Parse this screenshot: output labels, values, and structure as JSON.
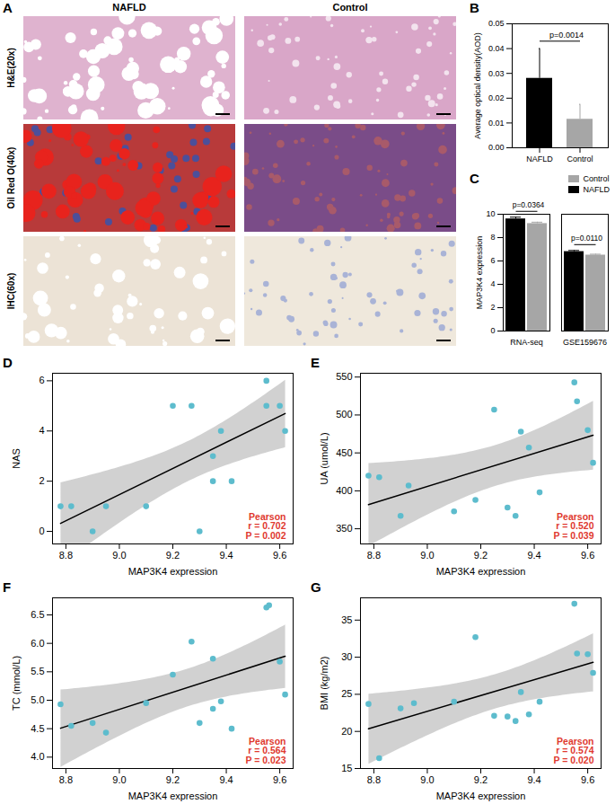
{
  "panel_a": {
    "panel": "A",
    "columns": [
      "NAFLD",
      "Control"
    ],
    "rows": [
      "H&E(20x)",
      "Oil Red O(40x)",
      "IHC(60x)"
    ]
  },
  "chart_data": [
    {
      "panel": "B",
      "type": "bar",
      "categories": [
        "NAFLD",
        "Control"
      ],
      "values": [
        0.028,
        0.0115
      ],
      "errors": [
        0.012,
        0.006
      ],
      "colors": [
        "#000000",
        "#a6a6a6"
      ],
      "y_label": "Average optical density(AOD)",
      "ylim": [
        0,
        0.05
      ],
      "yticks": [
        {
          "value": 0,
          "label": "0.00"
        },
        0.01,
        0.02,
        0.03,
        0.04,
        0.05
      ],
      "annotations": [
        "p=0.0014"
      ]
    },
    {
      "panel": "C",
      "type": "grouped_bar",
      "categories": [
        "RNA-seq",
        "GSE159676"
      ],
      "series": [
        {
          "name": "NAFLD",
          "color": "#000000",
          "values": [
            9.6,
            6.8
          ],
          "errors": [
            0.15,
            0.1
          ]
        },
        {
          "name": "Control",
          "color": "#a6a6a6",
          "values": [
            9.2,
            6.5
          ],
          "errors": [
            0.12,
            0.08
          ]
        }
      ],
      "y_label": "MAP3K4 expression",
      "ylim": [
        0,
        10
      ],
      "yticks": [
        0,
        2,
        4,
        6,
        8,
        10
      ],
      "annotations": [
        "p=0.0364",
        "p=0.0110"
      ],
      "legend": "top-right"
    },
    {
      "panel": "D",
      "type": "scatter",
      "x_label": "MAP3K4 expression",
      "y_label": "NAS",
      "color": "#5dbccd",
      "x": [
        8.78,
        8.82,
        8.9,
        8.95,
        9.1,
        9.2,
        9.27,
        9.3,
        9.35,
        9.35,
        9.38,
        9.42,
        9.55,
        9.55,
        9.6,
        9.62
      ],
      "values": [
        1,
        1,
        0,
        1,
        1,
        5,
        5,
        0,
        3,
        2,
        4,
        2,
        6,
        5,
        5,
        4
      ],
      "xlim": [
        8.75,
        9.65
      ],
      "xticks": [
        8.8,
        {
          "value": 9,
          "label": "9.0"
        },
        9.2,
        9.4,
        9.6
      ],
      "ylim": [
        -0.5,
        6.3
      ],
      "yticks": [
        0,
        2,
        4,
        6
      ],
      "annotations": [
        "Pearson",
        "r = 0.702",
        "P = 0.002"
      ]
    },
    {
      "panel": "E",
      "type": "scatter",
      "x_label": "MAP3K4 expression",
      "y_label": "UA (umol/L)",
      "color": "#5dbccd",
      "x": [
        8.78,
        8.82,
        8.9,
        8.93,
        9.1,
        9.18,
        9.25,
        9.3,
        9.33,
        9.35,
        9.38,
        9.42,
        9.55,
        9.56,
        9.6,
        9.62
      ],
      "values": [
        420,
        418,
        367,
        407,
        373,
        388,
        507,
        378,
        367,
        478,
        457,
        398,
        543,
        518,
        480,
        437
      ],
      "xlim": [
        8.75,
        9.65
      ],
      "xticks": [
        8.8,
        {
          "value": 9,
          "label": "9.0"
        },
        9.2,
        9.4,
        9.6
      ],
      "ylim": [
        330,
        555
      ],
      "yticks": [
        350,
        400,
        450,
        500,
        550
      ],
      "annotations": [
        "Pearson",
        "r = 0.520",
        "P = 0.039"
      ]
    },
    {
      "panel": "F",
      "type": "scatter",
      "x_label": "MAP3K4 expression",
      "y_label": "TC (mmol/L)",
      "color": "#5dbccd",
      "x": [
        8.78,
        8.82,
        8.9,
        8.95,
        9.1,
        9.2,
        9.27,
        9.3,
        9.35,
        9.35,
        9.38,
        9.42,
        9.55,
        9.56,
        9.6,
        9.62
      ],
      "values": [
        4.93,
        4.55,
        4.6,
        4.43,
        4.95,
        5.45,
        6.03,
        4.6,
        5.73,
        4.85,
        4.98,
        4.5,
        6.63,
        6.67,
        5.68,
        5.1
      ],
      "xlim": [
        8.75,
        9.65
      ],
      "xticks": [
        8.8,
        {
          "value": 9,
          "label": "9.0"
        },
        9.2,
        9.4,
        9.6
      ],
      "ylim": [
        3.8,
        6.8
      ],
      "yticks": [
        {
          "value": 4,
          "label": "4.0"
        },
        4.5,
        {
          "value": 5,
          "label": "5.0"
        },
        5.5,
        {
          "value": 6,
          "label": "6.0"
        },
        6.5
      ],
      "annotations": [
        "Pearson",
        "r = 0.564",
        "P = 0.023"
      ]
    },
    {
      "panel": "G",
      "type": "scatter",
      "x_label": "MAP3K4 expression",
      "y_label": "BMI (kg/m2)",
      "color": "#5dbccd",
      "x": [
        8.78,
        8.82,
        8.9,
        8.95,
        9.1,
        9.18,
        9.25,
        9.3,
        9.33,
        9.35,
        9.38,
        9.42,
        9.55,
        9.56,
        9.6,
        9.62
      ],
      "values": [
        23.7,
        16.4,
        23.1,
        23.8,
        24.0,
        32.7,
        22.1,
        22.0,
        21.4,
        25.3,
        22.3,
        24.0,
        37.2,
        30.5,
        30.4,
        27.9
      ],
      "xlim": [
        8.75,
        9.65
      ],
      "xticks": [
        8.8,
        {
          "value": 9,
          "label": "9.0"
        },
        9.2,
        9.4,
        9.6
      ],
      "ylim": [
        15,
        38
      ],
      "yticks": [
        15,
        20,
        25,
        30,
        35
      ],
      "annotations": [
        "Pearson",
        "r = 0.574",
        "P = 0.020"
      ]
    }
  ]
}
